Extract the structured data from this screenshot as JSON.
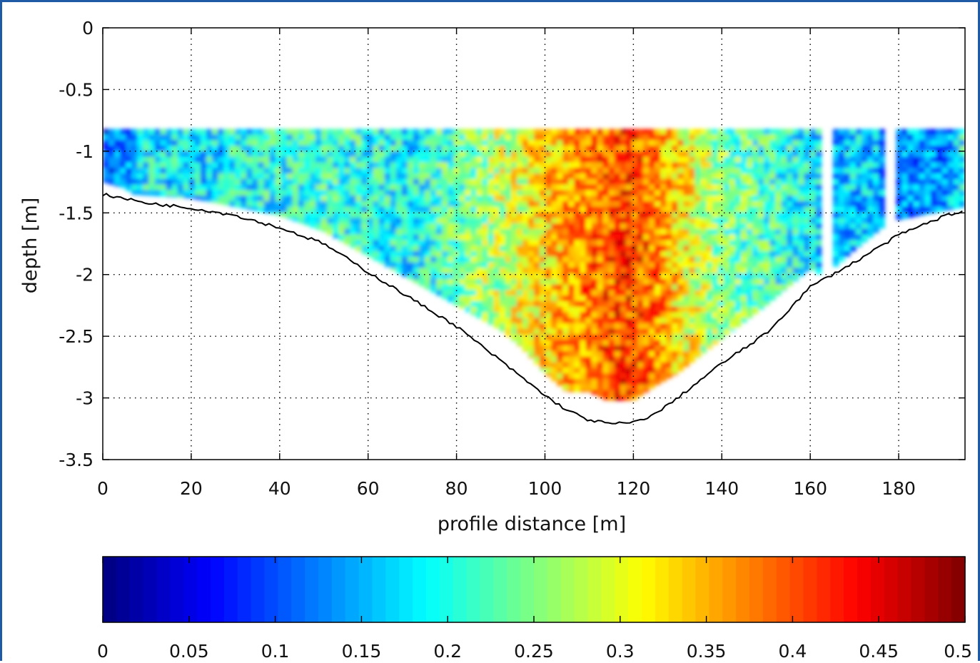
{
  "chart_data": {
    "type": "heatmap",
    "title": "",
    "xlabel": "profile distance [m]",
    "ylabel": "depth [m]",
    "xlim": [
      0,
      195
    ],
    "ylim": [
      -3.5,
      0
    ],
    "xticks": [
      0,
      20,
      40,
      60,
      80,
      100,
      120,
      140,
      160,
      180
    ],
    "yticks": [
      0,
      -0.5,
      -1,
      -1.5,
      -2,
      -2.5,
      -3,
      -3.5
    ],
    "grid": true,
    "colormap": "jet",
    "clim": [
      0,
      0.5
    ],
    "colorbar_ticks": [
      0,
      0.05,
      0.1,
      0.15,
      0.2,
      0.25,
      0.3,
      0.35,
      0.4,
      0.45,
      0.5
    ],
    "colorbar_placement": "bottom",
    "measurement_top_depth": -0.82,
    "bed_profile": {
      "x": [
        0,
        10,
        20,
        30,
        40,
        50,
        60,
        70,
        80,
        90,
        100,
        105,
        110,
        115,
        120,
        125,
        130,
        140,
        150,
        160,
        170,
        180,
        190,
        195
      ],
      "depth": [
        -1.35,
        -1.42,
        -1.46,
        -1.52,
        -1.62,
        -1.75,
        -1.98,
        -2.2,
        -2.42,
        -2.7,
        -2.98,
        -3.1,
        -3.18,
        -3.21,
        -3.2,
        -3.13,
        -3.0,
        -2.72,
        -2.48,
        -2.1,
        -1.9,
        -1.68,
        -1.53,
        -1.48
      ]
    },
    "data_bottom": {
      "x": [
        0,
        5,
        7,
        20,
        30,
        40,
        50,
        60,
        70,
        80,
        85,
        90,
        95,
        100,
        105,
        110,
        114,
        120,
        125,
        130,
        140,
        150,
        160,
        163,
        170,
        178,
        185,
        195
      ],
      "depth": [
        -1.25,
        -1.3,
        -1.35,
        -1.38,
        -1.45,
        -1.52,
        -1.65,
        -1.85,
        -2.05,
        -2.25,
        -2.35,
        -2.45,
        -2.6,
        -2.8,
        -2.95,
        -2.95,
        -3.02,
        -3.02,
        -2.9,
        -2.8,
        -2.52,
        -2.25,
        -1.95,
        -2.02,
        -1.8,
        -1.57,
        -1.52,
        -1.45
      ]
    },
    "profile_velocity": {
      "x": [
        0,
        5,
        10,
        20,
        30,
        40,
        50,
        60,
        70,
        80,
        90,
        100,
        105,
        110,
        115,
        120,
        125,
        130,
        140,
        150,
        160,
        165,
        170,
        175,
        180,
        185,
        190,
        195
      ],
      "value": [
        0.1,
        0.12,
        0.19,
        0.17,
        0.19,
        0.2,
        0.21,
        0.2,
        0.19,
        0.23,
        0.28,
        0.33,
        0.36,
        0.38,
        0.4,
        0.41,
        0.38,
        0.33,
        0.25,
        0.22,
        0.18,
        0.15,
        0.16,
        0.15,
        0.13,
        0.12,
        0.12,
        0.2
      ]
    },
    "gaps_x": [
      [
        162,
        165
      ],
      [
        177,
        180
      ]
    ]
  }
}
